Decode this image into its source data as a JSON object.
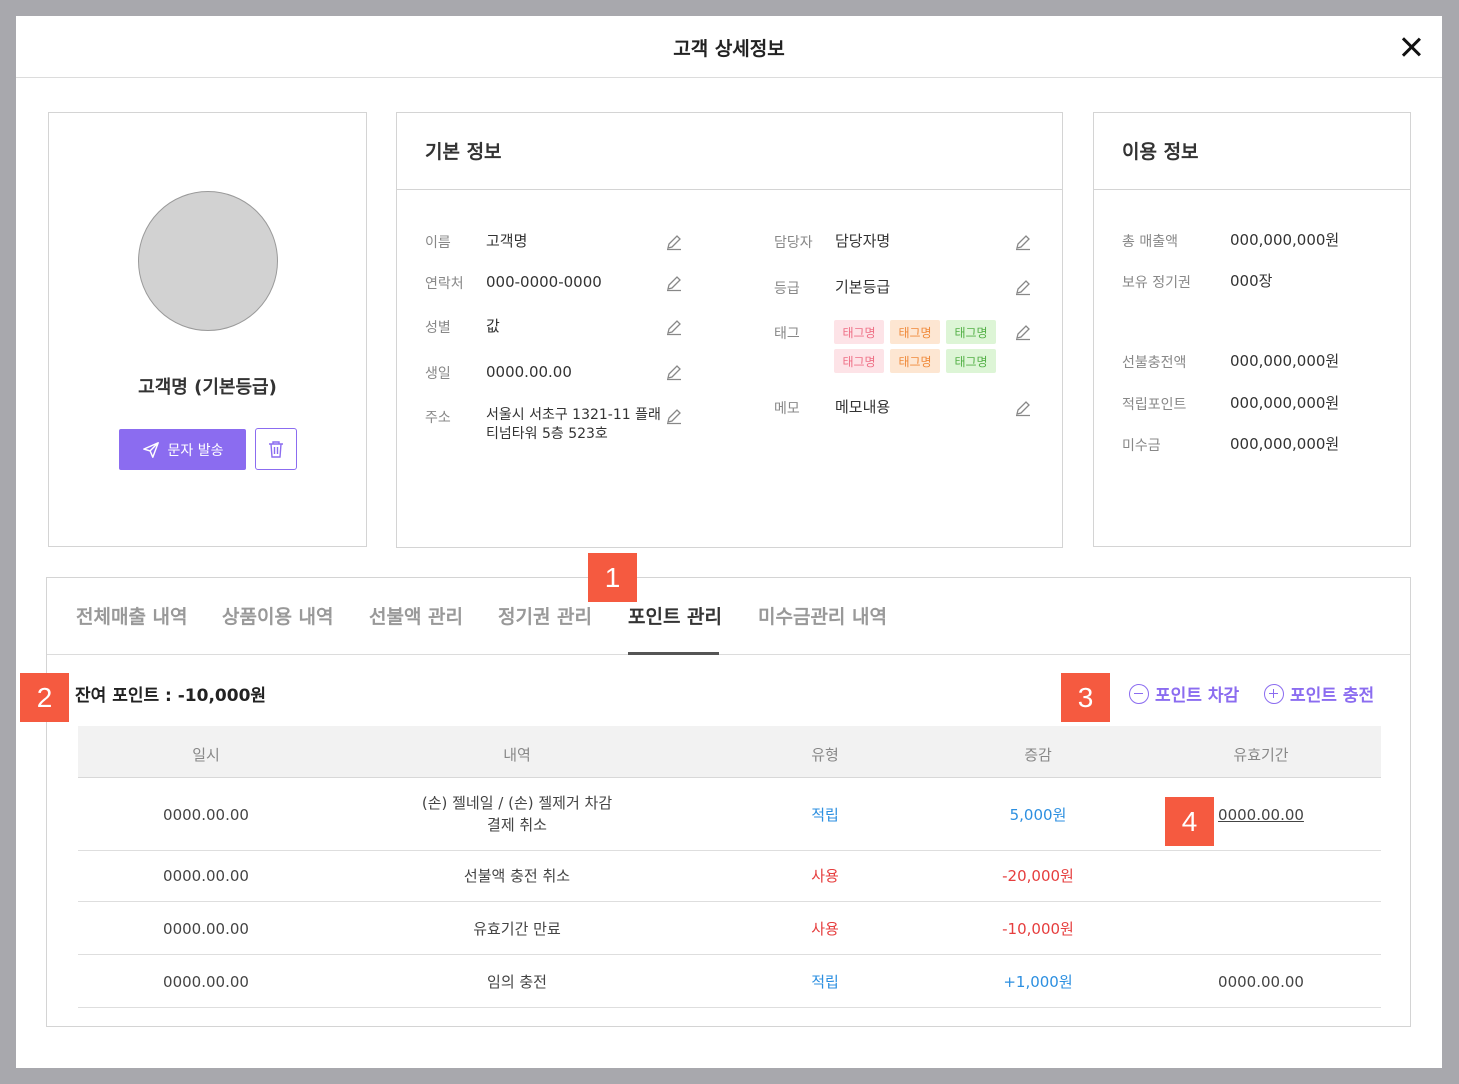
{
  "modal": {
    "title": "고객 상세정보"
  },
  "profile": {
    "name": "고객명 (기본등급)",
    "sms_button": "문자 발송"
  },
  "basic_info": {
    "title": "기본 정보",
    "left": [
      {
        "label": "이름",
        "value": "고객명"
      },
      {
        "label": "연락처",
        "value": "000-0000-0000"
      },
      {
        "label": "성별",
        "value": "값"
      },
      {
        "label": "생일",
        "value": "0000.00.00"
      },
      {
        "label": "주소",
        "value_line1": "서울시 서초구 1321-11 플래",
        "value_line2": "티넘타워 5층 523호"
      }
    ],
    "right": [
      {
        "label": "담당자",
        "value": "담당자명"
      },
      {
        "label": "등급",
        "value": "기본등급"
      },
      {
        "label": "태그"
      },
      {
        "label": "메모",
        "value": "메모내용"
      }
    ],
    "tags": [
      "태그명",
      "태그명",
      "태그명",
      "태그명",
      "태그명",
      "태그명"
    ]
  },
  "usage_info": {
    "title": "이용 정보",
    "items": [
      {
        "label": "총 매출액",
        "value": "000,000,000원"
      },
      {
        "label": "보유 정기권",
        "value": "000장"
      },
      {
        "label": "선불충전액",
        "value": "000,000,000원"
      },
      {
        "label": "적립포인트",
        "value": "000,000,000원"
      },
      {
        "label": "미수금",
        "value": "000,000,000원"
      }
    ]
  },
  "tabs": [
    "전체매출 내역",
    "상품이용 내역",
    "선불액 관리",
    "정기권 관리",
    "포인트 관리",
    "미수금관리 내역"
  ],
  "points": {
    "balance": "잔여 포인트 : -10,000원",
    "deduct_label": "포인트 차감",
    "charge_label": "포인트 충전",
    "columns": [
      "일시",
      "내역",
      "유형",
      "증감",
      "유효기간"
    ],
    "rows": [
      {
        "date": "0000.00.00",
        "desc_line1": "(손) 젤네일 / (손) 젤제거 차감",
        "desc_line2": "결제 취소",
        "type": "적립",
        "delta": "5,000원",
        "expiry": "0000.00.00"
      },
      {
        "date": "0000.00.00",
        "desc_line1": "선불액 충전 취소",
        "type": "사용",
        "delta": "-20,000원",
        "expiry": ""
      },
      {
        "date": "0000.00.00",
        "desc_line1": "유효기간 만료",
        "type": "사용",
        "delta": "-10,000원",
        "expiry": ""
      },
      {
        "date": "0000.00.00",
        "desc_line1": "임의 충전",
        "type": "적립",
        "delta": "+1,000원",
        "expiry": "0000.00.00"
      }
    ]
  },
  "markers": [
    "1",
    "2",
    "3",
    "4"
  ],
  "colors": {
    "accent": "#8b6cf0",
    "marker": "#f55a40",
    "positive": "#2c8fe0",
    "negative": "#e63e3e"
  }
}
